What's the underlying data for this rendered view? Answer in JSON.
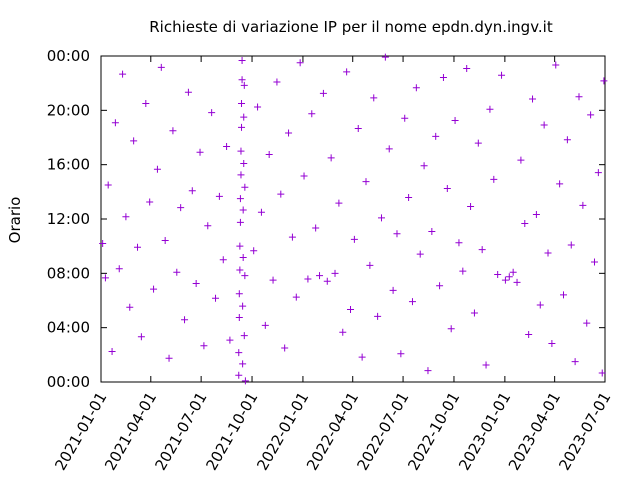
{
  "chart_data": {
    "type": "scatter",
    "title": "Richieste di variazione IP per il nome epdn.dyn.ingv.it",
    "xlabel": "",
    "ylabel": "Orario",
    "x_type": "date",
    "xlim": [
      "2021-01-01",
      "2023-07-01"
    ],
    "x_ticks": [
      "2021-01-01",
      "2021-04-01",
      "2021-07-01",
      "2021-10-01",
      "2022-01-01",
      "2022-04-01",
      "2022-07-01",
      "2022-10-01",
      "2023-01-01",
      "2023-04-01",
      "2023-07-01"
    ],
    "ylim": [
      "00:00",
      "24:00"
    ],
    "y_ticks": [
      "00:00",
      "04:00",
      "08:00",
      "12:00",
      "16:00",
      "20:00",
      "00:00"
    ],
    "grid": false,
    "legend": "none",
    "marker": "plus",
    "color": "#9400d3",
    "series": [
      {
        "points": [
          [
            "2021-01-04",
            "10:12"
          ],
          [
            "2021-01-09",
            "07:40"
          ],
          [
            "2021-01-14",
            "14:30"
          ],
          [
            "2021-01-21",
            "02:15"
          ],
          [
            "2021-01-27",
            "19:05"
          ],
          [
            "2021-02-03",
            "08:20"
          ],
          [
            "2021-02-09",
            "22:40"
          ],
          [
            "2021-02-15",
            "12:10"
          ],
          [
            "2021-02-22",
            "05:30"
          ],
          [
            "2021-03-01",
            "17:45"
          ],
          [
            "2021-03-08",
            "09:55"
          ],
          [
            "2021-03-15",
            "03:20"
          ],
          [
            "2021-03-23",
            "20:30"
          ],
          [
            "2021-03-30",
            "13:15"
          ],
          [
            "2021-04-06",
            "06:50"
          ],
          [
            "2021-04-13",
            "15:40"
          ],
          [
            "2021-04-20",
            "23:10"
          ],
          [
            "2021-04-27",
            "10:25"
          ],
          [
            "2021-05-04",
            "01:45"
          ],
          [
            "2021-05-11",
            "18:30"
          ],
          [
            "2021-05-18",
            "08:05"
          ],
          [
            "2021-05-25",
            "12:50"
          ],
          [
            "2021-06-01",
            "04:35"
          ],
          [
            "2021-06-08",
            "21:20"
          ],
          [
            "2021-06-15",
            "14:05"
          ],
          [
            "2021-06-22",
            "07:15"
          ],
          [
            "2021-06-29",
            "16:55"
          ],
          [
            "2021-07-06",
            "02:40"
          ],
          [
            "2021-07-13",
            "11:30"
          ],
          [
            "2021-07-20",
            "19:50"
          ],
          [
            "2021-07-27",
            "06:10"
          ],
          [
            "2021-08-03",
            "13:40"
          ],
          [
            "2021-08-10",
            "09:00"
          ],
          [
            "2021-08-16",
            "17:20"
          ],
          [
            "2021-08-22",
            "03:05"
          ],
          [
            "2021-09-07",
            "00:30"
          ],
          [
            "2021-09-07",
            "02:10"
          ],
          [
            "2021-09-08",
            "04:45"
          ],
          [
            "2021-09-08",
            "06:30"
          ],
          [
            "2021-09-09",
            "08:15"
          ],
          [
            "2021-09-09",
            "10:00"
          ],
          [
            "2021-09-10",
            "11:45"
          ],
          [
            "2021-09-10",
            "13:30"
          ],
          [
            "2021-09-11",
            "15:15"
          ],
          [
            "2021-09-11",
            "17:00"
          ],
          [
            "2021-09-12",
            "18:45"
          ],
          [
            "2021-09-12",
            "20:30"
          ],
          [
            "2021-09-13",
            "22:15"
          ],
          [
            "2021-09-13",
            "23:40"
          ],
          [
            "2021-09-14",
            "01:20"
          ],
          [
            "2021-09-14",
            "05:35"
          ],
          [
            "2021-09-15",
            "09:10"
          ],
          [
            "2021-09-15",
            "12:40"
          ],
          [
            "2021-09-16",
            "16:05"
          ],
          [
            "2021-09-16",
            "19:30"
          ],
          [
            "2021-09-17",
            "21:50"
          ],
          [
            "2021-09-17",
            "03:25"
          ],
          [
            "2021-09-18",
            "07:50"
          ],
          [
            "2021-09-18",
            "14:20"
          ],
          [
            "2021-09-19",
            "00:05"
          ],
          [
            "2021-10-04",
            "09:40"
          ],
          [
            "2021-10-11",
            "20:15"
          ],
          [
            "2021-10-18",
            "12:30"
          ],
          [
            "2021-10-25",
            "04:10"
          ],
          [
            "2021-11-01",
            "16:45"
          ],
          [
            "2021-11-08",
            "07:30"
          ],
          [
            "2021-11-15",
            "22:05"
          ],
          [
            "2021-11-22",
            "13:50"
          ],
          [
            "2021-11-29",
            "02:30"
          ],
          [
            "2021-12-06",
            "18:20"
          ],
          [
            "2021-12-13",
            "10:40"
          ],
          [
            "2021-12-20",
            "06:15"
          ],
          [
            "2021-12-27",
            "23:30"
          ],
          [
            "2022-01-03",
            "15:10"
          ],
          [
            "2022-01-10",
            "07:35"
          ],
          [
            "2022-01-17",
            "19:45"
          ],
          [
            "2022-01-24",
            "11:20"
          ],
          [
            "2022-01-31",
            "07:50"
          ],
          [
            "2022-02-07",
            "21:15"
          ],
          [
            "2022-02-14",
            "07:25"
          ],
          [
            "2022-02-21",
            "16:30"
          ],
          [
            "2022-02-28",
            "08:00"
          ],
          [
            "2022-03-07",
            "13:10"
          ],
          [
            "2022-03-14",
            "03:40"
          ],
          [
            "2022-03-21",
            "22:50"
          ],
          [
            "2022-03-28",
            "05:20"
          ],
          [
            "2022-04-04",
            "10:30"
          ],
          [
            "2022-04-11",
            "18:40"
          ],
          [
            "2022-04-18",
            "01:50"
          ],
          [
            "2022-04-25",
            "14:45"
          ],
          [
            "2022-05-02",
            "08:35"
          ],
          [
            "2022-05-09",
            "20:55"
          ],
          [
            "2022-05-16",
            "04:50"
          ],
          [
            "2022-05-23",
            "12:05"
          ],
          [
            "2022-05-30",
            "23:55"
          ],
          [
            "2022-06-06",
            "17:10"
          ],
          [
            "2022-06-13",
            "06:45"
          ],
          [
            "2022-06-20",
            "10:55"
          ],
          [
            "2022-06-27",
            "02:05"
          ],
          [
            "2022-07-04",
            "19:25"
          ],
          [
            "2022-07-11",
            "13:35"
          ],
          [
            "2022-07-18",
            "05:55"
          ],
          [
            "2022-07-25",
            "21:40"
          ],
          [
            "2022-08-01",
            "09:25"
          ],
          [
            "2022-08-08",
            "15:55"
          ],
          [
            "2022-08-15",
            "00:50"
          ],
          [
            "2022-08-22",
            "11:05"
          ],
          [
            "2022-08-29",
            "18:05"
          ],
          [
            "2022-09-05",
            "07:05"
          ],
          [
            "2022-09-12",
            "22:25"
          ],
          [
            "2022-09-19",
            "14:15"
          ],
          [
            "2022-09-26",
            "03:55"
          ],
          [
            "2022-10-03",
            "19:15"
          ],
          [
            "2022-10-10",
            "10:15"
          ],
          [
            "2022-10-17",
            "08:10"
          ],
          [
            "2022-10-24",
            "23:05"
          ],
          [
            "2022-10-31",
            "12:55"
          ],
          [
            "2022-11-07",
            "05:05"
          ],
          [
            "2022-11-14",
            "17:35"
          ],
          [
            "2022-11-21",
            "09:45"
          ],
          [
            "2022-11-28",
            "01:15"
          ],
          [
            "2022-12-05",
            "20:05"
          ],
          [
            "2022-12-12",
            "14:55"
          ],
          [
            "2022-12-19",
            "07:55"
          ],
          [
            "2022-12-26",
            "22:35"
          ],
          [
            "2023-01-02",
            "07:30"
          ],
          [
            "2023-01-09",
            "07:45"
          ],
          [
            "2023-01-16",
            "08:05"
          ],
          [
            "2023-01-23",
            "07:20"
          ],
          [
            "2023-01-30",
            "16:20"
          ],
          [
            "2023-02-06",
            "11:40"
          ],
          [
            "2023-02-13",
            "03:30"
          ],
          [
            "2023-02-20",
            "20:50"
          ],
          [
            "2023-02-27",
            "12:20"
          ],
          [
            "2023-03-06",
            "05:40"
          ],
          [
            "2023-03-13",
            "18:55"
          ],
          [
            "2023-03-20",
            "09:30"
          ],
          [
            "2023-03-27",
            "02:50"
          ],
          [
            "2023-04-03",
            "23:20"
          ],
          [
            "2023-04-10",
            "14:35"
          ],
          [
            "2023-04-17",
            "06:25"
          ],
          [
            "2023-04-24",
            "17:50"
          ],
          [
            "2023-05-01",
            "10:05"
          ],
          [
            "2023-05-08",
            "01:30"
          ],
          [
            "2023-05-15",
            "21:00"
          ],
          [
            "2023-05-22",
            "13:00"
          ],
          [
            "2023-05-29",
            "04:20"
          ],
          [
            "2023-06-05",
            "19:40"
          ],
          [
            "2023-06-12",
            "08:50"
          ],
          [
            "2023-06-19",
            "15:25"
          ],
          [
            "2023-06-26",
            "00:40"
          ],
          [
            "2023-06-29",
            "22:10"
          ]
        ]
      }
    ]
  }
}
